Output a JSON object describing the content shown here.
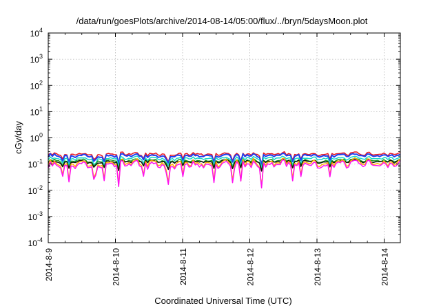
{
  "chart_data": {
    "type": "line",
    "title": "/data/run/goesPlots/archive/2014-08-14/05:00/flux/../bryn/5daysMoon.plot",
    "xlabel": "Coordinated Universal Time (UTC)",
    "ylabel": "cGy/day",
    "yscale": "log",
    "ylim": [
      0.0001,
      10000
    ],
    "xlim": [
      "2014-08-09",
      "2014-08-14 06:00"
    ],
    "grid": true,
    "legend": "none",
    "x_ticks": [
      "2014-8-9",
      "2014-8-10",
      "2014-8-11",
      "2014-8-12",
      "2014-8-13",
      "2014-8-14"
    ],
    "y_ticks": [
      {
        "base": "10",
        "exp": "-4"
      },
      {
        "base": "10",
        "exp": "-3"
      },
      {
        "base": "10",
        "exp": "-2"
      },
      {
        "base": "10",
        "exp": "-1"
      },
      {
        "base": "10",
        "exp": "0"
      },
      {
        "base": "10",
        "exp": "1"
      },
      {
        "base": "10",
        "exp": "2"
      },
      {
        "base": "10",
        "exp": "3"
      },
      {
        "base": "10",
        "exp": "4"
      }
    ],
    "series": [
      {
        "color": "#e8141e",
        "level": 0.24
      },
      {
        "color": "#1f3ff0",
        "level": 0.21
      },
      {
        "color": "#18d7c8",
        "level": 0.165
      },
      {
        "color": "#1d9a22",
        "level": 0.135
      },
      {
        "color": "#111111",
        "level": 0.125
      },
      {
        "color": "#ffb000",
        "level": 0.11
      },
      {
        "color": "#ff10f0",
        "level": 0.095
      }
    ]
  }
}
